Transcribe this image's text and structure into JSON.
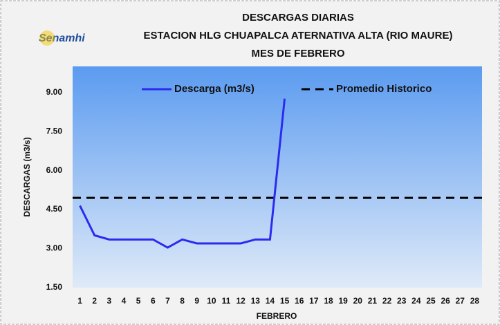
{
  "logo": "Senamhi",
  "chart_data": {
    "type": "line",
    "title": [
      "DESCARGAS DIARIAS",
      "ESTACION HLG CHUAPALCA ATERNATIVA ALTA (RIO MAURE)",
      "MES DE FEBRERO"
    ],
    "x_label": "FEBRERO",
    "y_label": "DESCARGAS (m3/s)",
    "categories": [
      "1",
      "2",
      "3",
      "4",
      "5",
      "6",
      "7",
      "8",
      "9",
      "10",
      "11",
      "12",
      "13",
      "14",
      "15",
      "16",
      "17",
      "18",
      "19",
      "20",
      "21",
      "22",
      "23",
      "24",
      "25",
      "26",
      "27",
      "28"
    ],
    "series": [
      {
        "name": "Descarga (m3/s)",
        "color": "#2b2bf0",
        "values": [
          4.65,
          3.51,
          3.35,
          3.35,
          3.35,
          3.35,
          3.04,
          3.35,
          3.2,
          3.2,
          3.2,
          3.2,
          3.35,
          3.35,
          8.76,
          null,
          null,
          null,
          null,
          null,
          null,
          null,
          null,
          null,
          null,
          null,
          null,
          null
        ]
      }
    ],
    "reference": {
      "name": "Promedio Historico",
      "value": 4.95,
      "color": "#000000"
    },
    "ylim": [
      1.5,
      10.0
    ],
    "yticks": [
      {
        "value": 1.5,
        "label": "1.50"
      },
      {
        "value": 3,
        "label": "3.00"
      },
      {
        "value": 4.5,
        "label": "4.50"
      },
      {
        "value": 6,
        "label": "6.00"
      },
      {
        "value": 7.5,
        "label": "7.50"
      },
      {
        "value": 9,
        "label": "9.00"
      }
    ],
    "grid": false
  }
}
